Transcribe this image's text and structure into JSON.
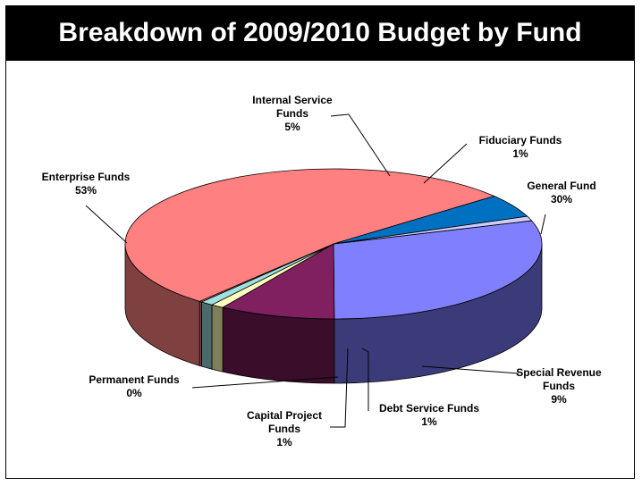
{
  "chart_data": {
    "type": "pie",
    "title": "Breakdown of 2009/2010 Budget by Fund",
    "slices": [
      {
        "name": "General Fund",
        "percent_label": "30%",
        "value": 30,
        "color": "#8080ff",
        "side": "#3b3b7a"
      },
      {
        "name": "Special Revenue Funds",
        "percent_label": "9%",
        "value": 9,
        "color": "#802060",
        "side": "#3a0e2b"
      },
      {
        "name": "Debt Service Funds",
        "percent_label": "1%",
        "value": 1,
        "color": "#ffffc0",
        "side": "#7f7f5c"
      },
      {
        "name": "Capital Project Funds",
        "percent_label": "1%",
        "value": 1,
        "color": "#a0e0e0",
        "side": "#4a6b6b"
      },
      {
        "name": "Permanent Funds",
        "percent_label": "0%",
        "value": 0.2,
        "color": "#ff8080",
        "side": "#7f3f3f"
      },
      {
        "name": "Enterprise Funds",
        "percent_label": "53%",
        "value": 53,
        "color": "#ff8080",
        "side": "#7f4040"
      },
      {
        "name": "Internal Service Funds",
        "percent_label": "5%",
        "value": 5,
        "color": "#0070c0",
        "side": "#003860"
      },
      {
        "name": "Fiduciary Funds",
        "percent_label": "1%",
        "value": 1,
        "color": "#ccccff",
        "side": "#66667f"
      }
    ]
  }
}
